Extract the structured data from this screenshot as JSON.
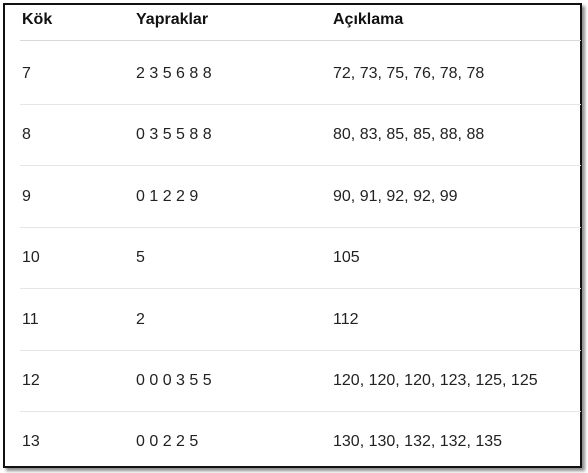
{
  "table": {
    "header": [
      "Kök",
      "Yapraklar",
      "Açıklama"
    ],
    "rows": [
      [
        "7",
        "2 3 5 6 8 8",
        "72, 73, 75, 76, 78, 78"
      ],
      [
        "8",
        "0 3 5 5 8 8",
        "80, 83, 85, 85, 88, 88"
      ],
      [
        "9",
        "0 1 2 2 9",
        "90, 91, 92, 92, 99"
      ],
      [
        "10",
        "5",
        "105"
      ],
      [
        "11",
        "2",
        "112"
      ],
      [
        "12",
        "0 0 0 3 5 5",
        "120, 120, 120, 123, 125, 125"
      ],
      [
        "13",
        "0 0 2 2 5",
        "130, 130, 132, 132, 135"
      ]
    ]
  }
}
